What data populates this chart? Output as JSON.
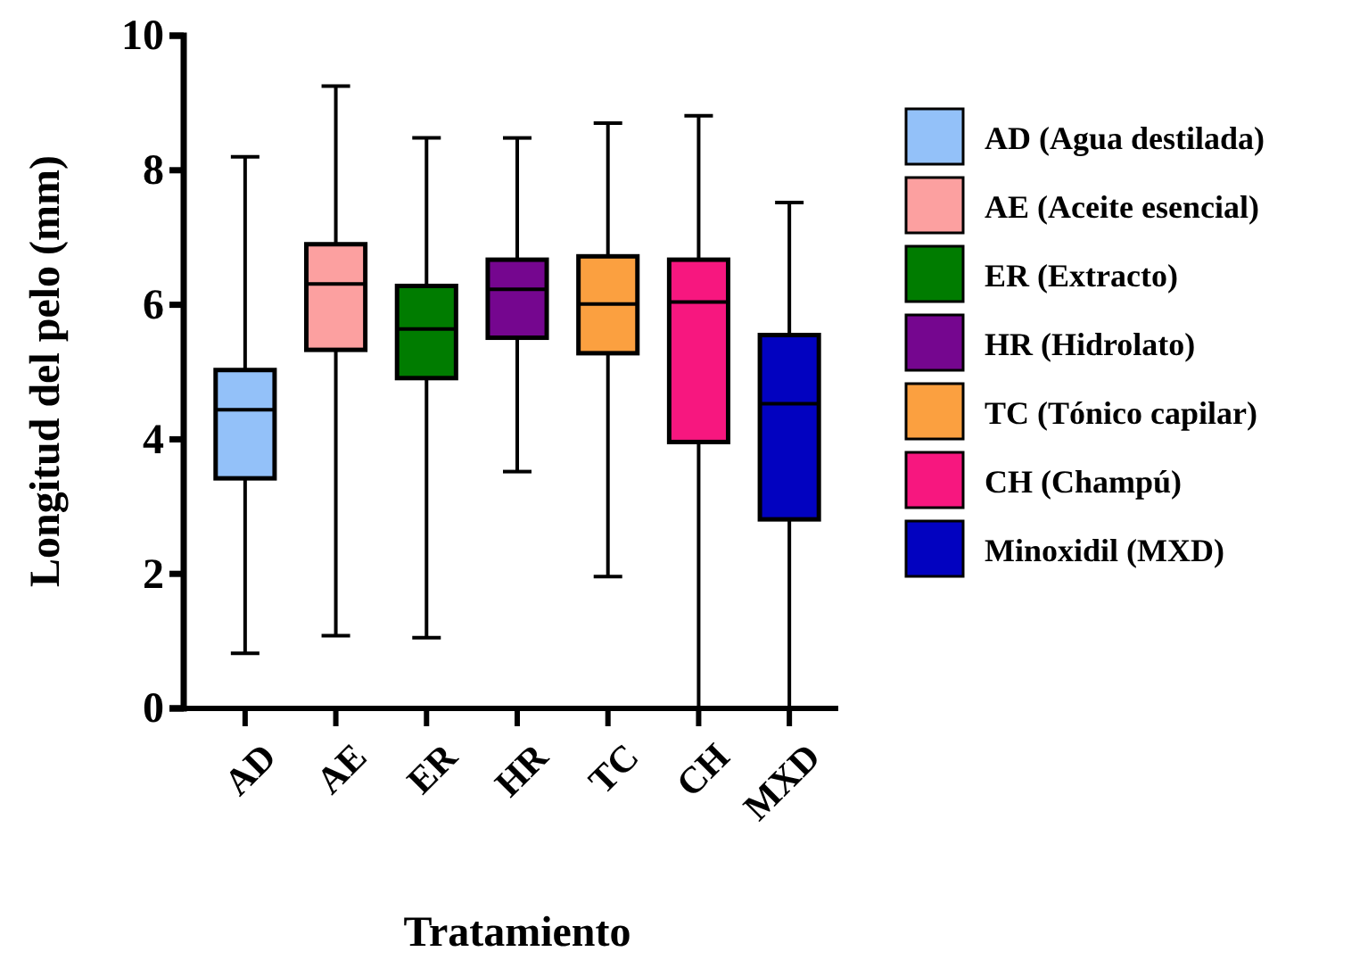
{
  "chart_data": {
    "type": "box",
    "xlabel": "Tratamiento",
    "ylabel": "Longitud del pelo (mm)",
    "categories": [
      "AD",
      "AE",
      "ER",
      "HR",
      "TC",
      "CH",
      "MXD"
    ],
    "ylim": [
      0,
      10
    ],
    "yticks": [
      0,
      2,
      4,
      6,
      8,
      10
    ],
    "legend": "right",
    "series": [
      {
        "name": "AD (Agua destilada)",
        "color": "#93c1f9",
        "boxes": [
          {
            "low": 0.82,
            "q1": 3.42,
            "median": 4.44,
            "q3": 5.03,
            "high": 8.2
          },
          null,
          null,
          null,
          null,
          null,
          null
        ]
      },
      {
        "name": "AE (Aceite esencial)",
        "color": "#fca0a0",
        "boxes": [
          null,
          {
            "low": 1.08,
            "q1": 5.33,
            "median": 6.31,
            "q3": 6.9,
            "high": 9.25
          },
          null,
          null,
          null,
          null,
          null
        ]
      },
      {
        "name": "ER (Extracto)",
        "color": "#007c00",
        "boxes": [
          null,
          null,
          {
            "low": 1.05,
            "q1": 4.91,
            "median": 5.64,
            "q3": 6.28,
            "high": 8.48
          },
          null,
          null,
          null,
          null
        ]
      },
      {
        "name": "HR (Hidrolato)",
        "color": "#75068f",
        "boxes": [
          null,
          null,
          null,
          {
            "low": 3.52,
            "q1": 5.51,
            "median": 6.23,
            "q3": 6.67,
            "high": 8.48
          },
          null,
          null,
          null
        ]
      },
      {
        "name": "TC (Tónico capilar)",
        "color": "#fba040",
        "boxes": [
          null,
          null,
          null,
          null,
          {
            "low": 1.96,
            "q1": 5.28,
            "median": 6.01,
            "q3": 6.72,
            "high": 8.7
          },
          null,
          null
        ]
      },
      {
        "name": "CH (Champú)",
        "color": "#f7177f",
        "boxes": [
          null,
          null,
          null,
          null,
          null,
          {
            "low": 0,
            "q1": 3.96,
            "median": 6.04,
            "q3": 6.67,
            "high": 8.81
          },
          null
        ]
      },
      {
        "name": "Minoxidil (MXD)",
        "color": "#0202c0",
        "boxes": [
          null,
          null,
          null,
          null,
          null,
          null,
          {
            "low": 0,
            "q1": 2.81,
            "median": 4.53,
            "q3": 5.55,
            "high": 7.52
          }
        ]
      }
    ]
  }
}
